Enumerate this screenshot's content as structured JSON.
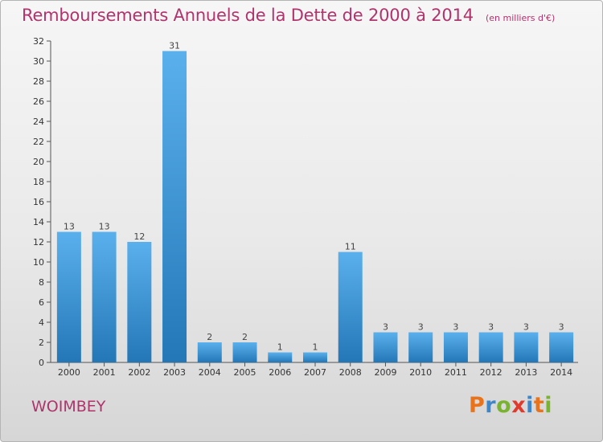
{
  "header": {
    "title": "Remboursements Annuels de la Dette de 2000 à 2014",
    "unit": "(en milliers d'€)"
  },
  "footer": {
    "town": "WOIMBEY",
    "logo_text": "Proxiti"
  },
  "colors": {
    "title": "#b0336c",
    "bar_top": "#5ab0ec",
    "bar_bottom": "#2477b7",
    "logo_letters": [
      "#e8731b",
      "#3f86c8",
      "#7ab330",
      "#e03a2c",
      "#3f86c8",
      "#e8731b",
      "#7ab330"
    ]
  },
  "chart_data": {
    "type": "bar",
    "title": "Remboursements Annuels de la Dette de 2000 à 2014",
    "unit": "(en milliers d'€)",
    "categories": [
      "2000",
      "2001",
      "2002",
      "2003",
      "2004",
      "2005",
      "2006",
      "2007",
      "2008",
      "2009",
      "2010",
      "2011",
      "2012",
      "2013",
      "2014"
    ],
    "values": [
      13,
      13,
      12,
      31,
      2,
      2,
      1,
      1,
      11,
      3,
      3,
      3,
      3,
      3,
      3
    ],
    "ylim": [
      0,
      32
    ],
    "yticks": [
      0,
      2,
      4,
      6,
      8,
      10,
      12,
      14,
      16,
      18,
      20,
      22,
      24,
      26,
      28,
      30,
      32
    ],
    "grid": false,
    "data_labels": true
  }
}
